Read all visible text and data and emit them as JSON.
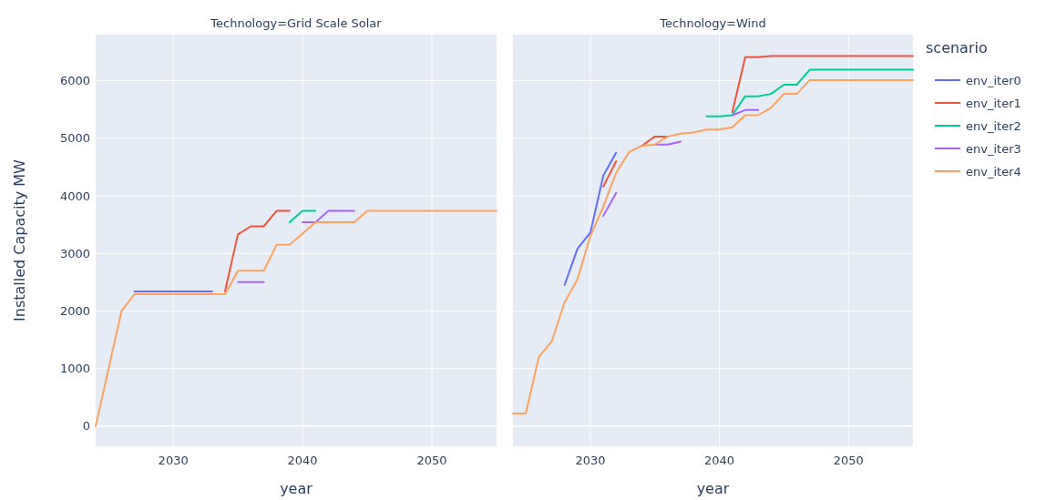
{
  "chart_data": [
    {
      "type": "line",
      "title": "Technology=Grid Scale Solar",
      "xlabel": "year",
      "ylabel": "Installed Capacity MW",
      "xlim": [
        2024,
        2055
      ],
      "ylim": [
        -350,
        6800
      ],
      "xticks": [
        2030,
        2040,
        2050
      ],
      "yticks": [
        0,
        1000,
        2000,
        3000,
        4000,
        5000,
        6000
      ],
      "grid": true,
      "series": [
        {
          "color": "#636efa",
          "x": [
            2027,
            2033
          ],
          "values": [
            2340,
            2340
          ]
        },
        {
          "color": "#ef553b",
          "x": [
            2034,
            2035,
            2036,
            2037,
            2038,
            2039
          ],
          "values": [
            2340,
            3330,
            3470,
            3470,
            3740,
            3740
          ]
        },
        {
          "color": "#00cc96",
          "x": [
            2039,
            2040,
            2041
          ],
          "values": [
            3540,
            3740,
            3740
          ]
        },
        {
          "color": "#ab63fa",
          "x": [
            2035,
            2037,
            2038,
            2039,
            2040,
            2041,
            2042,
            2044
          ],
          "values": [
            2500,
            2500,
            null,
            null,
            3540,
            3540,
            3740,
            3740
          ]
        },
        {
          "color": "#ffa15a",
          "x": [
            2024,
            2026,
            2027,
            2034,
            2035,
            2037,
            2038,
            2039,
            2041,
            2044,
            2045,
            2055
          ],
          "values": [
            0,
            2000,
            2290,
            2290,
            2700,
            2700,
            3150,
            3150,
            3540,
            3540,
            3740,
            3740
          ]
        }
      ]
    },
    {
      "type": "line",
      "title": "Technology=Wind",
      "xlabel": "year",
      "legend_title": "scenario",
      "legend": "right",
      "tick_labels": "x",
      "xlim": [
        2024,
        2055
      ],
      "ylim": [
        -350,
        6800
      ],
      "xticks": [
        2030,
        2040,
        2050
      ],
      "yticks": [
        0,
        1000,
        2000,
        3000,
        4000,
        5000,
        6000
      ],
      "grid": true,
      "series": [
        {
          "name": "env_iter0",
          "color": "#636efa",
          "x": [
            2028,
            2029,
            2030,
            2031,
            2032
          ],
          "values": [
            2450,
            3080,
            3360,
            4350,
            4750
          ]
        },
        {
          "name": "env_iter1",
          "color": "#ef553b",
          "x": [
            2031,
            2032,
            2033,
            2034,
            2035,
            2036,
            2037,
            2041,
            2042,
            2043,
            2044,
            2055
          ],
          "values": [
            4160,
            4600,
            null,
            4870,
            5030,
            5030,
            null,
            5450,
            6410,
            6410,
            6430,
            6430
          ]
        },
        {
          "name": "env_iter2",
          "color": "#00cc96",
          "x": [
            2039,
            2040,
            2041,
            2042,
            2043,
            2044,
            2045,
            2046,
            2047,
            2055
          ],
          "values": [
            5380,
            5380,
            5400,
            5730,
            5730,
            5770,
            5930,
            5930,
            6190,
            6190
          ]
        },
        {
          "name": "env_iter3",
          "color": "#ab63fa",
          "x": [
            2031,
            2032,
            2033,
            2035,
            2036,
            2037,
            2038,
            2041,
            2042,
            2043
          ],
          "values": [
            3650,
            4050,
            null,
            4890,
            4890,
            4940,
            null,
            5400,
            5490,
            5490
          ]
        },
        {
          "name": "env_iter4",
          "color": "#ffa15a",
          "x": [
            2024,
            2025,
            2026,
            2027,
            2028,
            2029,
            2030,
            2031,
            2032,
            2033,
            2034,
            2035,
            2036,
            2037,
            2038,
            2039,
            2040,
            2041,
            2042,
            2043,
            2044,
            2045,
            2046,
            2047,
            2055
          ],
          "values": [
            220,
            220,
            1200,
            1470,
            2150,
            2550,
            3300,
            3810,
            4400,
            4760,
            4870,
            4890,
            5030,
            5080,
            5100,
            5150,
            5150,
            5190,
            5400,
            5400,
            5530,
            5770,
            5770,
            6010,
            6010
          ]
        }
      ]
    }
  ]
}
